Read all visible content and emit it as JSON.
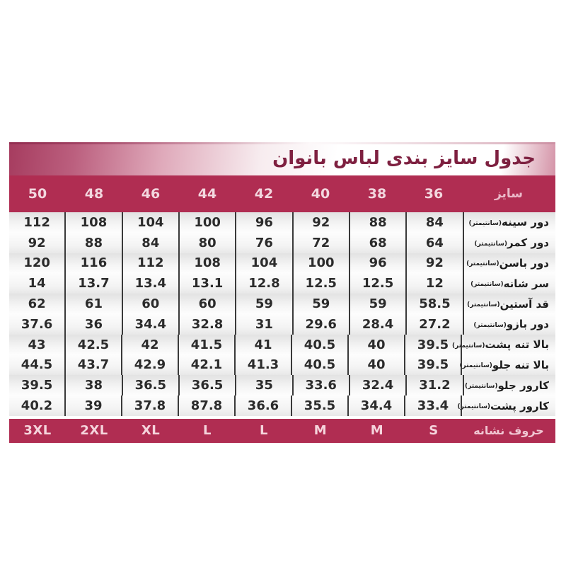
{
  "table": {
    "title": "جدول سایز بندی  لباس بانوان",
    "header_label": "سایز",
    "footer_label": "حروف  نشانه",
    "unit_suffix": "(سانتیمتر)"
  },
  "colors": {
    "crimson_band": "#b02d52",
    "title_text": "#7e2040",
    "header_text": "#f3d7df",
    "data_text": "#2b2b2b",
    "divider": "#3a3a3a",
    "gradient_left": "#a63c5f",
    "page_background": "#ffffff"
  },
  "chart_data": {
    "type": "table",
    "title": "جدول سایز بندی  لباس بانوان",
    "column_order": "right-to-left",
    "header": {
      "label": "سایز",
      "sizes": [
        "36",
        "38",
        "40",
        "42",
        "44",
        "46",
        "48",
        "50"
      ]
    },
    "rows": [
      {
        "label": "دور سینه",
        "unit": "(سانتیمتر)",
        "values": [
          "84",
          "88",
          "92",
          "96",
          "100",
          "104",
          "108",
          "112"
        ]
      },
      {
        "label": "دور کمر",
        "unit": "(سانتیمتر)",
        "values": [
          "64",
          "68",
          "72",
          "76",
          "80",
          "84",
          "88",
          "92"
        ]
      },
      {
        "label": "دور باسن",
        "unit": "(سانتیمتر)",
        "values": [
          "92",
          "96",
          "100",
          "104",
          "108",
          "112",
          "116",
          "120"
        ]
      },
      {
        "label": "سر شانه",
        "unit": "(سانتیمتر)",
        "values": [
          "12",
          "12.5",
          "12.5",
          "12.8",
          "13.1",
          "13.4",
          "13.7",
          "14"
        ]
      },
      {
        "label": "قد آستین",
        "unit": "(سانتیمتر)",
        "values": [
          "58.5",
          "59",
          "59",
          "59",
          "60",
          "60",
          "61",
          "62"
        ]
      },
      {
        "label": "دور بازو",
        "unit": "(سانتیمتر)",
        "values": [
          "27.2",
          "28.4",
          "29.6",
          "31",
          "32.8",
          "34.4",
          "36",
          "37.6"
        ]
      },
      {
        "label": "بالا تنه پشت",
        "unit": "(سانتیمتر)",
        "values": [
          "39.5",
          "40",
          "40.5",
          "41",
          "41.5",
          "42",
          "42.5",
          "43"
        ]
      },
      {
        "label": "بالا تنه جلو",
        "unit": "(سانتیمتر)",
        "values": [
          "39.5",
          "40",
          "40.5",
          "41.3",
          "42.1",
          "42.9",
          "43.7",
          "44.5"
        ]
      },
      {
        "label": "کارور جلو",
        "unit": "(سانتیمتر)",
        "values": [
          "31.2",
          "32.4",
          "33.6",
          "35",
          "36.5",
          "36.5",
          "38",
          "39.5"
        ]
      },
      {
        "label": "کارور پشت",
        "unit": "(سانتیمتر)",
        "values": [
          "33.4",
          "34.4",
          "35.5",
          "36.6",
          "87.8",
          "37.8",
          "39",
          "40.2"
        ]
      }
    ],
    "footer": {
      "label": "حروف  نشانه",
      "values": [
        "S",
        "M",
        "M",
        "L",
        "L",
        "XL",
        "2XL",
        "3XL"
      ]
    }
  }
}
